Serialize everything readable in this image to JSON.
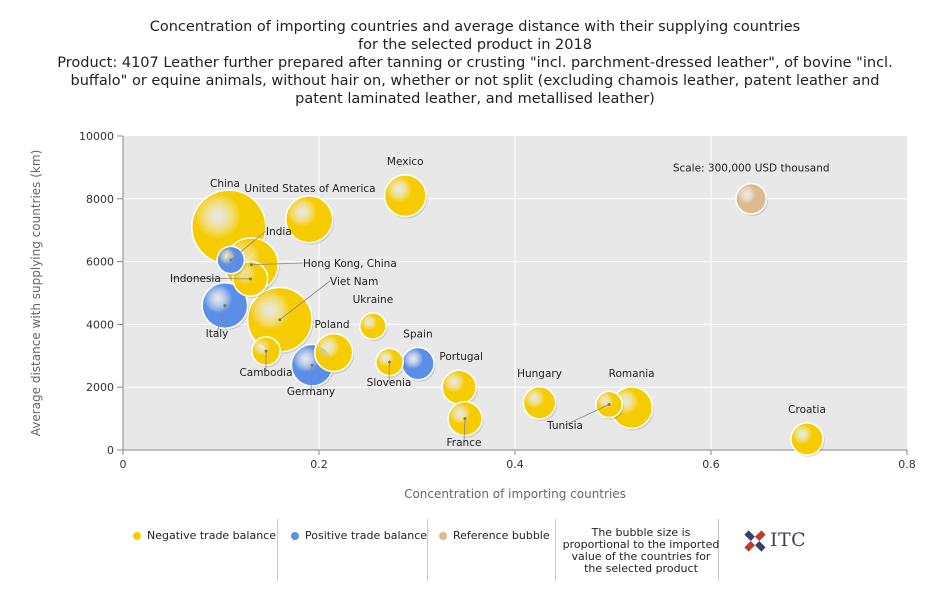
{
  "chart_title": "Concentration of importing countries and average distance with their supplying countries",
  "chart_title_2": "for the selected product in 2018",
  "product_line_1": "Product: 4107 Leather further prepared after tanning or crusting \"incl. parchment-dressed leather\", of bovine \"incl.",
  "product_line_2": "buffalo\" or equine animals, without hair on, whether or not split (excluding chamois leather, patent leather and",
  "product_line_3": "patent laminated leather, and metallised leather)",
  "legend": {
    "negative": "Negative trade balance",
    "positive": "Positive trade balance",
    "reference": "Reference bubble",
    "note": "The bubble size is proportional to the imported value of the countries for the selected product",
    "logo_text": "ITC"
  },
  "colors": {
    "negative": "#f5cc00",
    "positive": "#5b8ee6",
    "reference": "#dcb98e",
    "plot_bg": "#e8e8e8",
    "grid": "#ffffff"
  },
  "chart_data": {
    "type": "scatter",
    "title": "Concentration of importing countries and average distance with their supplying countries for the selected product in 2018",
    "xlabel": "Concentration of importing countries",
    "ylabel": "Average distance with supplying countries (km)",
    "xlim": [
      0,
      0.8
    ],
    "ylim": [
      0,
      10000
    ],
    "x_ticks": [
      0,
      0.2,
      0.4,
      0.6,
      0.8
    ],
    "x_tick_labels": [
      "0",
      "0.2",
      "0.4",
      "0.6",
      "0.8"
    ],
    "y_ticks": [
      0,
      2000,
      4000,
      6000,
      8000,
      10000
    ],
    "y_tick_labels": [
      "0",
      "2000",
      "4000",
      "6000",
      "8000",
      "10000"
    ],
    "grid": true,
    "reference_label": "Scale: 300,000 USD thousand",
    "points": [
      {
        "name": "China",
        "x": 0.108,
        "y": 7100,
        "size": 9.5,
        "balance": "negative"
      },
      {
        "name": "United States of America",
        "x": 0.19,
        "y": 7350,
        "size": 3.8,
        "balance": "negative"
      },
      {
        "name": "Mexico",
        "x": 0.288,
        "y": 8100,
        "size": 3.0,
        "balance": "negative"
      },
      {
        "name": "Hong Kong, China",
        "x": 0.131,
        "y": 5900,
        "size": 5.0,
        "balance": "negative"
      },
      {
        "name": "India",
        "x": 0.11,
        "y": 6050,
        "size": 1.3,
        "balance": "positive"
      },
      {
        "name": "Indonesia",
        "x": 0.13,
        "y": 5450,
        "size": 2.1,
        "balance": "negative"
      },
      {
        "name": "Viet Nam",
        "x": 0.16,
        "y": 4150,
        "size": 7.2,
        "balance": "negative"
      },
      {
        "name": "Italy",
        "x": 0.104,
        "y": 4600,
        "size": 3.6,
        "balance": "positive"
      },
      {
        "name": "Ukraine",
        "x": 0.255,
        "y": 3950,
        "size": 1.2,
        "balance": "negative"
      },
      {
        "name": "Poland",
        "x": 0.215,
        "y": 3100,
        "size": 2.5,
        "balance": "negative"
      },
      {
        "name": "Cambodia",
        "x": 0.146,
        "y": 3150,
        "size": 1.4,
        "balance": "negative"
      },
      {
        "name": "Germany",
        "x": 0.193,
        "y": 2700,
        "size": 3.0,
        "balance": "positive"
      },
      {
        "name": "Slovenia",
        "x": 0.272,
        "y": 2800,
        "size": 1.3,
        "balance": "negative"
      },
      {
        "name": "Spain",
        "x": 0.301,
        "y": 2750,
        "size": 1.8,
        "balance": "positive"
      },
      {
        "name": "Portugal",
        "x": 0.343,
        "y": 2000,
        "size": 2.0,
        "balance": "negative"
      },
      {
        "name": "France",
        "x": 0.349,
        "y": 1000,
        "size": 2.0,
        "balance": "negative"
      },
      {
        "name": "Hungary",
        "x": 0.425,
        "y": 1500,
        "size": 1.8,
        "balance": "negative"
      },
      {
        "name": "Tunisia",
        "x": 0.496,
        "y": 1450,
        "size": 1.2,
        "balance": "negative"
      },
      {
        "name": "Romania",
        "x": 0.519,
        "y": 1350,
        "size": 3.0,
        "balance": "negative"
      },
      {
        "name": "Croatia",
        "x": 0.698,
        "y": 350,
        "size": 1.8,
        "balance": "negative"
      },
      {
        "name": "Scale: 300,000 USD thousand",
        "x": 0.641,
        "y": 8000,
        "size": 1.6,
        "balance": "reference"
      }
    ]
  }
}
